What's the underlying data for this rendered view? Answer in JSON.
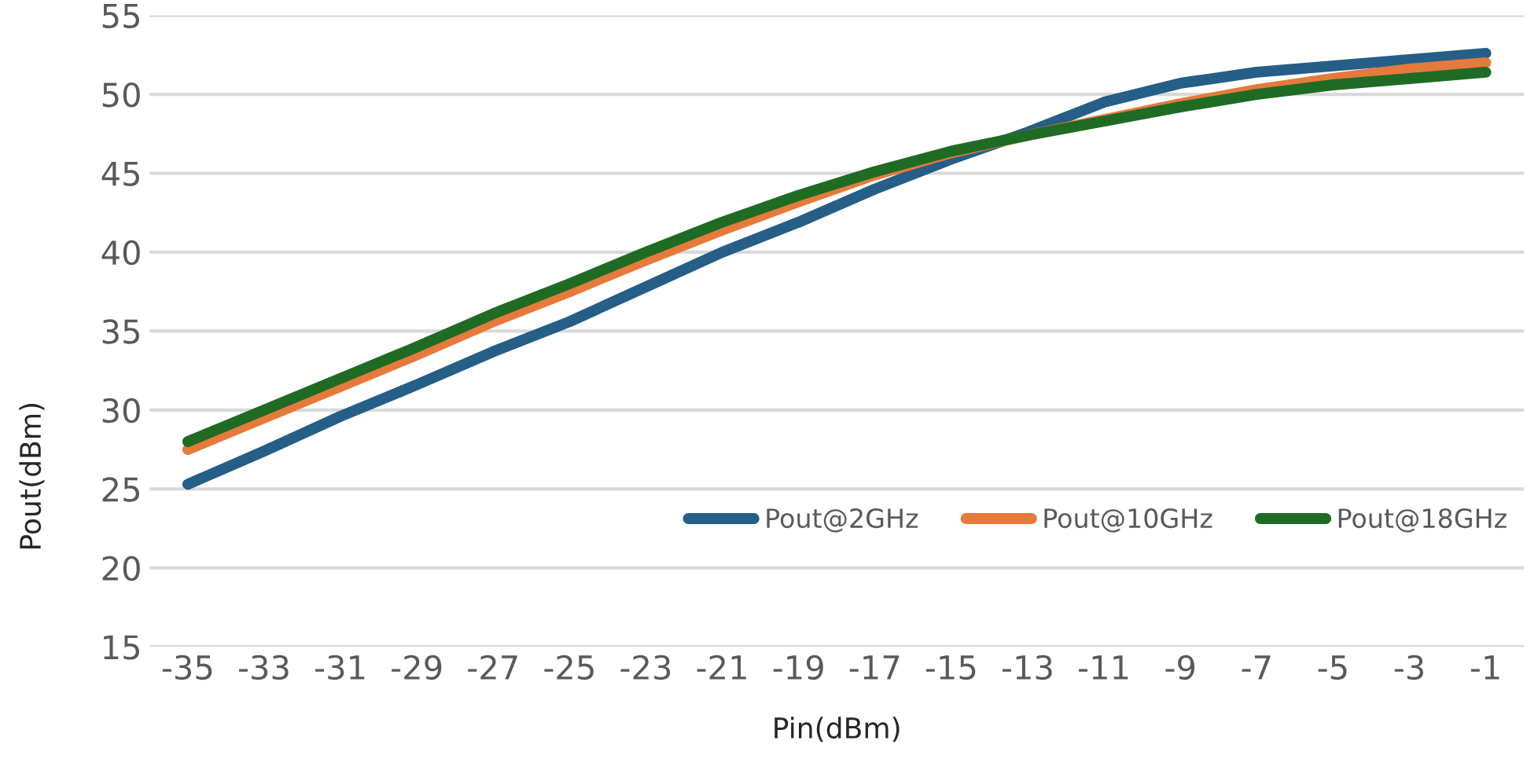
{
  "chart_data": {
    "type": "line",
    "xlabel": "Pin(dBm)",
    "ylabel": "Pout(dBm)",
    "categories": [
      "-35",
      "-33",
      "-31",
      "-29",
      "-27",
      "-25",
      "-23",
      "-21",
      "-19",
      "-17",
      "-15",
      "-13",
      "-11",
      "-9",
      "-7",
      "-5",
      "-3",
      "-1"
    ],
    "series": [
      {
        "name": "Pout@2GHz",
        "color": "#255e86",
        "values": [
          25.3,
          27.4,
          29.6,
          31.6,
          33.7,
          35.6,
          37.8,
          40.0,
          41.9,
          44.0,
          45.9,
          47.6,
          49.5,
          50.7,
          51.4,
          51.8,
          52.2,
          52.6
        ]
      },
      {
        "name": "Pout@10GHz",
        "color": "#e57a3c",
        "values": [
          27.5,
          29.5,
          31.5,
          33.5,
          35.6,
          37.5,
          39.5,
          41.4,
          43.2,
          44.9,
          46.3,
          47.4,
          48.4,
          49.4,
          50.3,
          51.0,
          51.6,
          52.0
        ]
      },
      {
        "name": "Pout@18GHz",
        "color": "#1f6b24",
        "values": [
          28.0,
          30.0,
          32.0,
          34.0,
          36.1,
          38.0,
          40.0,
          41.9,
          43.6,
          45.1,
          46.4,
          47.4,
          48.3,
          49.2,
          50.0,
          50.6,
          51.0,
          51.4
        ]
      }
    ],
    "ylim": [
      15,
      55
    ],
    "yticks": [
      15,
      20,
      25,
      30,
      35,
      40,
      45,
      50,
      55
    ],
    "grid": "y",
    "legend": "bottom",
    "marker": "none",
    "line_style": "solid"
  }
}
